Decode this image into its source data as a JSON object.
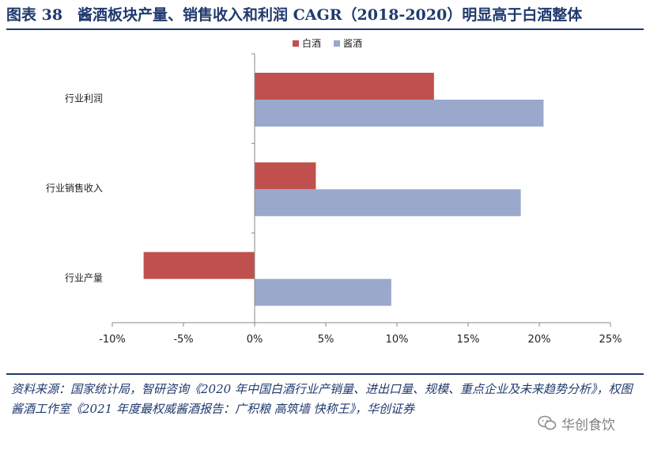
{
  "header": {
    "title": "图表 38　酱酒板块产量、销售收入和利润 CAGR（2018-2020）明显高于白酒整体"
  },
  "chart_data": {
    "type": "bar",
    "orientation": "horizontal",
    "categories": [
      "行业利润",
      "行业销售收入",
      "行业产量"
    ],
    "series": [
      {
        "name": "白酒",
        "color": "#c0504d",
        "values": [
          12.6,
          4.3,
          -7.8
        ]
      },
      {
        "name": "酱酒",
        "color": "#9aa8cc",
        "values": [
          20.3,
          18.7,
          9.6
        ]
      }
    ],
    "xlim": [
      -10,
      25
    ],
    "xticks": [
      "-10%",
      "-5%",
      "0%",
      "5%",
      "10%",
      "15%",
      "20%",
      "25%"
    ],
    "xtick_values": [
      -10,
      -5,
      0,
      5,
      10,
      15,
      20,
      25
    ],
    "legend_position": "top-center",
    "grid": false
  },
  "footer": {
    "source_text": "资料来源：国家统计局，智研咨询《2020 年中国白酒行业产销量、进出口量、规模、重点企业及未来趋势分析》，权图酱酒工作室《2021 年度最权威酱酒报告：广积粮 高筑墙 快称王》，华创证券",
    "watermark_text": "华创食饮"
  }
}
